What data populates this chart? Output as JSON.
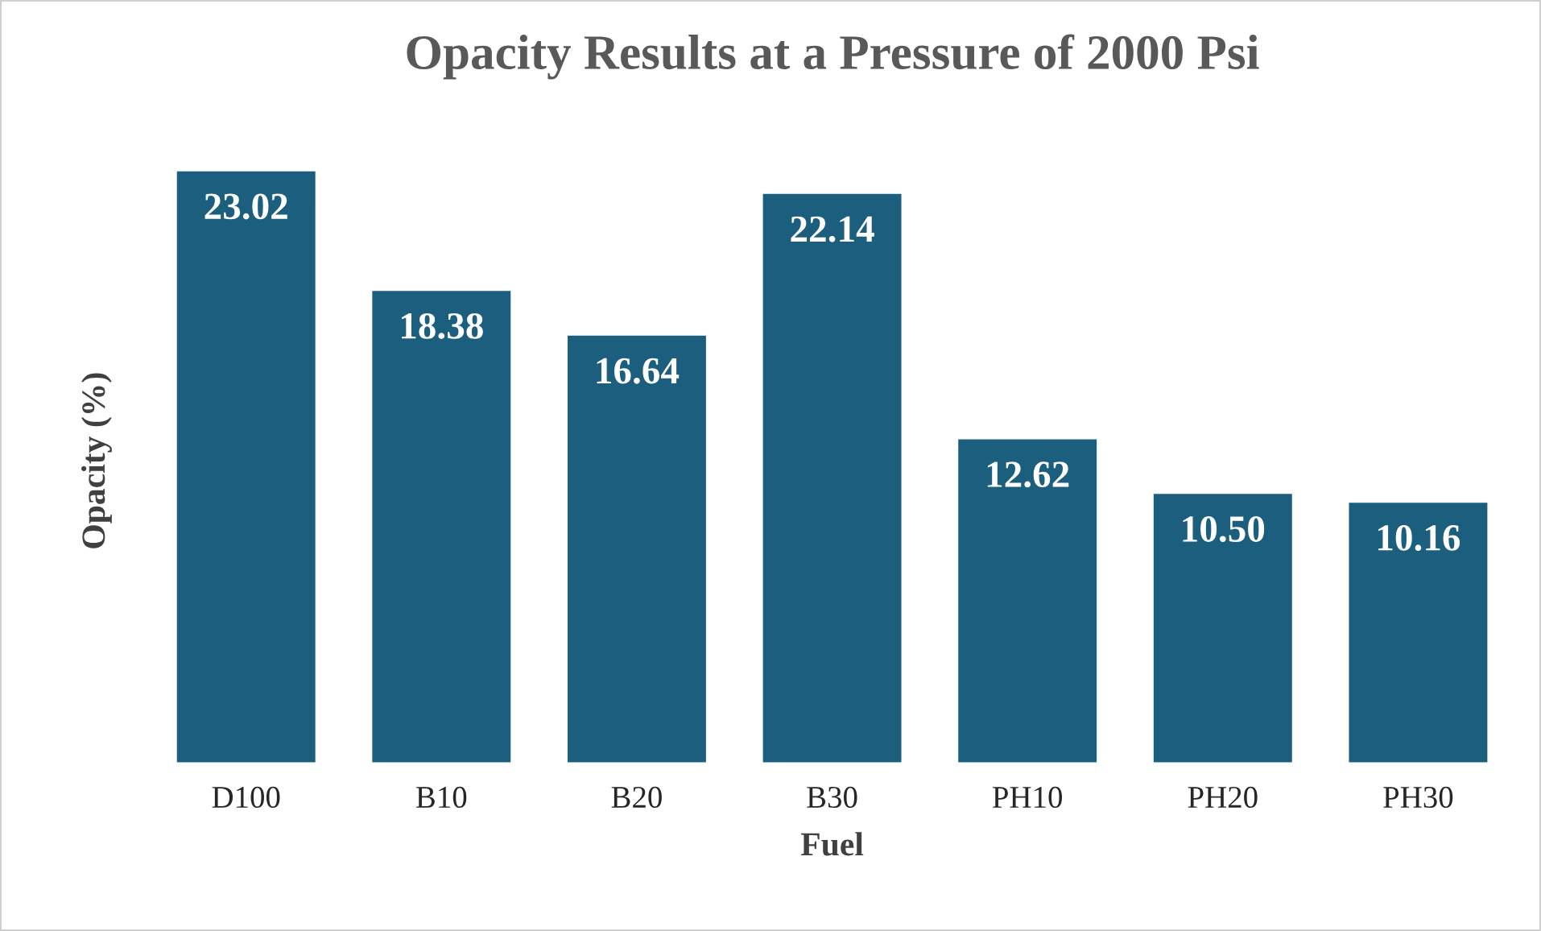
{
  "chart_data": {
    "type": "bar",
    "title": "Opacity Results at a Pressure of 2000 Psi",
    "xlabel": "Fuel",
    "ylabel": "Opacity (%)",
    "categories": [
      "D100",
      "B10",
      "B20",
      "B30",
      "PH10",
      "PH20",
      "PH30"
    ],
    "values": [
      23.02,
      18.38,
      16.64,
      22.14,
      12.62,
      10.5,
      10.16
    ],
    "value_labels": [
      "23.02",
      "18.38",
      "16.64",
      "22.14",
      "12.62",
      "10.50",
      "10.16"
    ],
    "color": "#1b5e7e",
    "grid": false,
    "tick_labels": "x"
  }
}
